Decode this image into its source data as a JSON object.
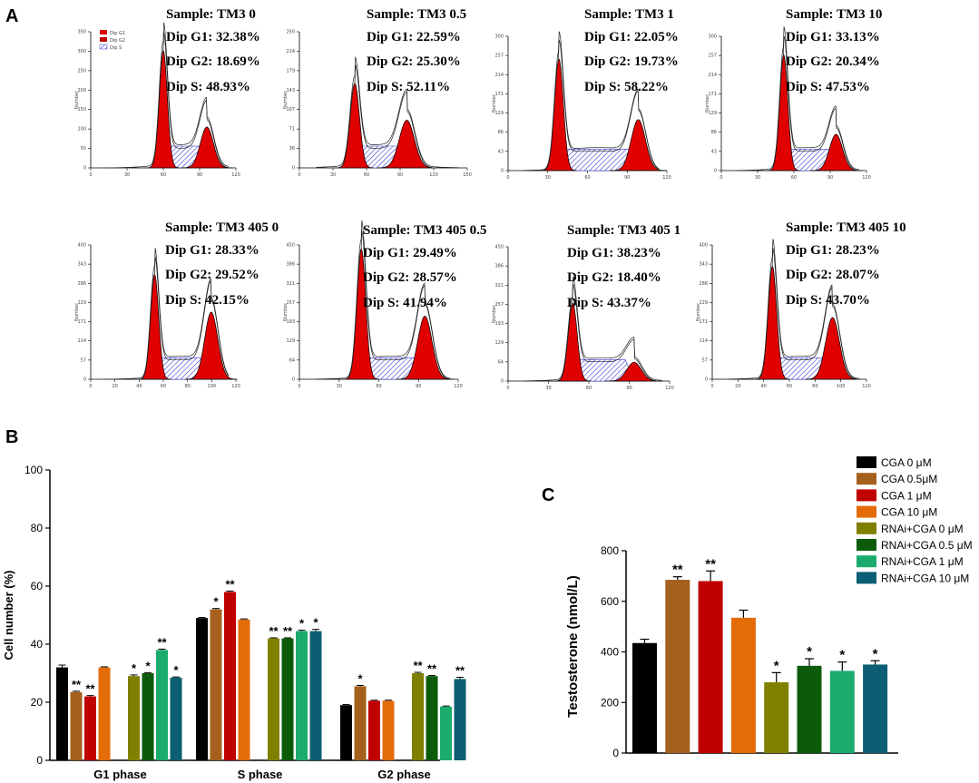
{
  "panels": {
    "a": "A",
    "b": "B",
    "c": "C"
  },
  "histograms": [
    {
      "sample": "Sample: TM3 0",
      "g1": "Dip G1: 32.38%",
      "g2": "Dip G2: 18.69%",
      "s": "Dip S: 48.93%",
      "ymax": 350,
      "g1pos": 0.5,
      "g1h": 0.86,
      "g2pos": 0.8,
      "g2h": 0.3,
      "xticks": [
        "0",
        "30",
        "60",
        "90",
        "120"
      ]
    },
    {
      "sample": "Sample: TM3 0.5",
      "g1": "Dip G1: 22.59%",
      "g2": "Dip G2: 25.30%",
      "s": "Dip S: 52.11%",
      "ymax": 250,
      "g1pos": 0.33,
      "g1h": 0.62,
      "g2pos": 0.64,
      "g2h": 0.35,
      "xticks": [
        "0",
        "30",
        "60",
        "90",
        "120",
        "150"
      ]
    },
    {
      "sample": "Sample: TM3 1",
      "g1": "Dip G1: 22.05%",
      "g2": "Dip G2: 19.73%",
      "s": "Dip S: 58.22%",
      "ymax": 300,
      "g1pos": 0.32,
      "g1h": 0.83,
      "g2pos": 0.82,
      "g2h": 0.38,
      "xticks": [
        "0",
        "30",
        "60",
        "90",
        "120"
      ]
    },
    {
      "sample": "Sample: TM3 10",
      "g1": "Dip G1: 33.13%",
      "g2": "Dip G2: 20.34%",
      "s": "Dip S: 47.53%",
      "ymax": 300,
      "g1pos": 0.43,
      "g1h": 0.86,
      "g2pos": 0.79,
      "g2h": 0.27,
      "xticks": [
        "0",
        "30",
        "60",
        "90",
        "120"
      ]
    },
    {
      "sample": "Sample: TM3 405 0",
      "g1": "Dip G1: 28.33%",
      "g2": "Dip G2: 29.52%",
      "s": "Dip S: 42.15%",
      "ymax": 400,
      "g1pos": 0.44,
      "g1h": 0.78,
      "g2pos": 0.83,
      "g2h": 0.5,
      "xticks": [
        "0",
        "20",
        "40",
        "60",
        "80",
        "100",
        "120"
      ]
    },
    {
      "sample": "Sample: TM3 405 0.5",
      "g1": "Dip G1: 29.49%",
      "g2": "Dip G2: 28.57%",
      "s": "Dip S: 41.94%",
      "ymax": 450,
      "g1pos": 0.39,
      "g1h": 0.97,
      "g2pos": 0.79,
      "g2h": 0.47,
      "xticks": [
        "0",
        "30",
        "60",
        "90",
        "120"
      ]
    },
    {
      "sample": "Sample: TM3 405 1",
      "g1": "Dip G1: 38.23%",
      "g2": "Dip G2: 18.40%",
      "s": "Dip S: 43.37%",
      "ymax": 450,
      "g1pos": 0.4,
      "g1h": 0.58,
      "g2pos": 0.78,
      "g2h": 0.14,
      "xticks": [
        "0",
        "30",
        "60",
        "90",
        "120"
      ]
    },
    {
      "sample": "Sample: TM3 405 10",
      "g1": "Dip G1: 28.23%",
      "g2": "Dip G2: 28.07%",
      "s": "Dip S: 43.70%",
      "ymax": 400,
      "g1pos": 0.39,
      "g1h": 0.84,
      "g2pos": 0.78,
      "g2h": 0.46,
      "xticks": [
        "0",
        "20",
        "40",
        "60",
        "80",
        "100",
        "120"
      ]
    }
  ],
  "histogram_legend": [
    "Dip G1",
    "Dip G2",
    "Dip S"
  ],
  "colors": {
    "hist_red": "#e00000",
    "hist_hatch": "#3b3bd6",
    "series": [
      "#000000",
      "#a5601d",
      "#c00000",
      "#e36c09",
      "#808000",
      "#0b5b0b",
      "#1aab6d",
      "#0b5e73"
    ]
  },
  "chart_data": [
    {
      "type": "bar",
      "ylabel": "Cell number (%)",
      "ylim": [
        0,
        100
      ],
      "yticks": [
        "0",
        "20",
        "40",
        "60",
        "80",
        "100"
      ],
      "categories": [
        "G1 phase",
        "S phase",
        "G2 phase"
      ],
      "series": [
        {
          "name": "CGA 0 μM",
          "values": [
            32,
            49,
            19
          ],
          "errors": [
            0.8,
            0.2,
            0.2
          ],
          "stars": [
            "",
            "",
            ""
          ]
        },
        {
          "name": "CGA 0.5μM",
          "values": [
            23.5,
            52,
            25.5
          ],
          "errors": [
            0.3,
            0.3,
            0.3
          ],
          "stars": [
            "**",
            "*",
            "*"
          ]
        },
        {
          "name": "CGA 1 μM",
          "values": [
            22,
            58,
            20.5
          ],
          "errors": [
            0.3,
            0.3,
            0.2
          ],
          "stars": [
            "**",
            "**",
            ""
          ]
        },
        {
          "name": "CGA 10 μM",
          "values": [
            32,
            48.5,
            20.5
          ],
          "errors": [
            0.2,
            0.2,
            0.2
          ],
          "stars": [
            "",
            "",
            ""
          ]
        },
        {
          "name": "RNAi+CGA 0 μM",
          "values": [
            29,
            42,
            30
          ],
          "errors": [
            0.4,
            0.2,
            0.3
          ],
          "stars": [
            "*",
            "**",
            "**"
          ]
        },
        {
          "name": "RNAi+CGA 0.5 μM",
          "values": [
            30,
            42,
            29
          ],
          "errors": [
            0.2,
            0.2,
            0.2
          ],
          "stars": [
            "*",
            "**",
            "**"
          ]
        },
        {
          "name": "RNAi+CGA 1 μM",
          "values": [
            38,
            44.5,
            18.5
          ],
          "errors": [
            0.3,
            0.3,
            0.2
          ],
          "stars": [
            "**",
            "*",
            ""
          ]
        },
        {
          "name": "RNAi+CGA 10 μM",
          "values": [
            28.5,
            44.5,
            28
          ],
          "errors": [
            0.2,
            0.6,
            0.6
          ],
          "stars": [
            "*",
            "*",
            "**"
          ]
        }
      ]
    },
    {
      "type": "bar",
      "ylabel": "Testosterone (nmol/L)",
      "ylim": [
        0,
        800
      ],
      "yticks": [
        "0",
        "200",
        "400",
        "600",
        "800"
      ],
      "categories": [
        "CGA 0 μM",
        "CGA 0.5μM",
        "CGA 1 μM",
        "CGA 10 μM",
        "RNAi+CGA 0 μM",
        "RNAi+CGA 0.5 μM",
        "RNAi+CGA 1 μM",
        "RNAi+CGA 10 μM"
      ],
      "values": [
        435,
        685,
        680,
        535,
        280,
        345,
        325,
        350
      ],
      "errors": [
        15,
        12,
        40,
        30,
        38,
        28,
        35,
        15
      ],
      "stars": [
        "",
        "**",
        "**",
        "",
        "*",
        "*",
        "*",
        "*"
      ]
    }
  ],
  "legend": [
    "CGA 0 μM",
    "CGA 0.5μM",
    "CGA 1 μM",
    "CGA 10 μM",
    "RNAi+CGA 0 μM",
    "RNAi+CGA 0.5 μM",
    "RNAi+CGA 1 μM",
    "RNAi+CGA 10 μM"
  ]
}
